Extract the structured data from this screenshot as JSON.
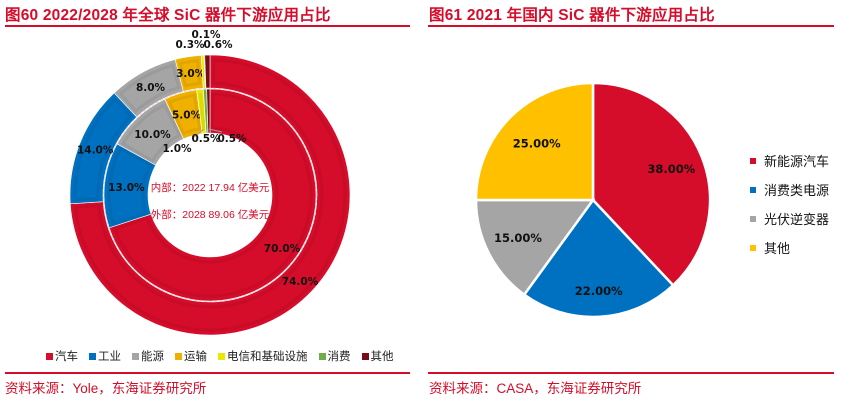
{
  "left_panel": {
    "title": "图60  2022/2028 年全球 SiC 器件下游应用占比",
    "source": "资料来源：Yole，东海证券研究所"
  },
  "right_panel": {
    "title": "图61  2021 年国内 SiC 器件下游应用占比",
    "source": "资料来源：CASA，东海证券研究所"
  },
  "chart_data": [
    {
      "type": "pie",
      "variant": "double-donut",
      "title": "图60  2022/2028 年全球 SiC 器件下游应用占比",
      "categories": [
        "汽车",
        "工业",
        "能源",
        "运输",
        "电信和基础设施",
        "消费",
        "其他"
      ],
      "colors": [
        "#d50c2a",
        "#0070c0",
        "#a5a5a5",
        "#f0b000",
        "#e8e800",
        "#70ad47",
        "#7a0a18"
      ],
      "series": [
        {
          "name": "内部: 2022",
          "ring": "inner",
          "values": [
            70.0,
            13.0,
            10.0,
            5.0,
            1.0,
            0.5,
            0.5
          ],
          "labels": [
            "70.0%",
            "13.0%",
            "10.0%",
            "5.0%",
            "1.0%",
            "0.5%",
            "0.5%"
          ]
        },
        {
          "name": "外部: 2028",
          "ring": "outer",
          "values": [
            74.0,
            14.0,
            8.0,
            3.0,
            0.3,
            0.1,
            0.6
          ],
          "labels": [
            "74.0%",
            "14.0%",
            "8.0%",
            "3.0%",
            "0.3%",
            "0.1%",
            "0.6%"
          ]
        }
      ],
      "center_text": [
        "内部：2022 17.94 亿美元",
        "外部：2028 89.06 亿美元"
      ],
      "legend": [
        "汽车",
        "工业",
        "能源",
        "运输",
        "电信和基础设施",
        "消费",
        "其他"
      ],
      "legend_position": "bottom"
    },
    {
      "type": "pie",
      "title": "图61  2021 年国内 SiC 器件下游应用占比",
      "categories": [
        "新能源汽车",
        "消费类电源",
        "光伏逆变器",
        "其他"
      ],
      "values": [
        38.0,
        22.0,
        15.0,
        25.0
      ],
      "labels": [
        "38.00%",
        "22.00%",
        "15.00%",
        "25.00%"
      ],
      "colors": [
        "#d50c2a",
        "#0070c0",
        "#a5a5a5",
        "#ffc000"
      ],
      "legend": [
        "新能源汽车",
        "消费类电源",
        "光伏逆变器",
        "其他"
      ],
      "legend_position": "right"
    }
  ]
}
